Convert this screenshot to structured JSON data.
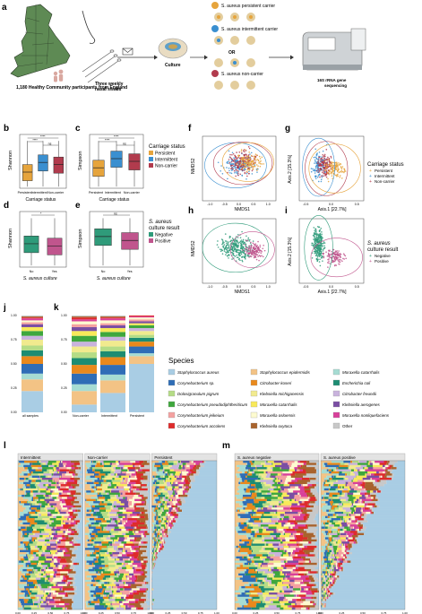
{
  "panel_letters": [
    "a",
    "b",
    "c",
    "d",
    "e",
    "f",
    "g",
    "h",
    "i",
    "j",
    "k",
    "l",
    "m"
  ],
  "workflow": {
    "participants": "1,180 Healthy Community participants from England",
    "swabs_line1": "Three weekly",
    "swabs_line2": "nasal swabs",
    "culture": "Culture",
    "persistent": "S. aureus persistent carrier",
    "intermittent": "S. aureus intermittent carrier",
    "or": "OR",
    "noncarrier": "S. aureus non-carrier",
    "sequencing_line1": "16S rRNA gene",
    "sequencing_line2": "sequencing"
  },
  "colors": {
    "persistent": "#e6a43c",
    "intermittent": "#3a8fd0",
    "noncarrier": "#b13b4d",
    "negative": "#2f9b7a",
    "positive": "#c0558d"
  },
  "legends": {
    "carriage_title": "Carriage status",
    "carriage_items": [
      "Persistent",
      "Intermittent",
      "Non-carrier"
    ],
    "culture_title_l1": "S. aureus",
    "culture_title_l2": "culture result",
    "culture_items": [
      "Negative",
      "Positive"
    ],
    "species_title": "Species",
    "species": [
      {
        "name": "Staphylococcus aureus",
        "color": "#a9cde4"
      },
      {
        "name": "Staphylococcus epidermidis",
        "color": "#f3c385"
      },
      {
        "name": "Moraxella catarrhalis",
        "color": "#a6dcd3"
      },
      {
        "name": "Corynebacterium sp.",
        "color": "#2f6db6"
      },
      {
        "name": "Citrobacter koseri",
        "color": "#e9891c"
      },
      {
        "name": "Escherichia coli",
        "color": "#1d8c72"
      },
      {
        "name": "Dolosigranulum pigrum",
        "color": "#b5dc86"
      },
      {
        "name": "Klebsiella michiganensis",
        "color": "#f1ea8e"
      },
      {
        "name": "Citrobacter freundii",
        "color": "#c9b3dd"
      },
      {
        "name": "Corynebacterium pseudodiphtheriticum",
        "color": "#3fa73d"
      },
      {
        "name": "Moraxella catarrhalis",
        "color": "#f8e95a"
      },
      {
        "name": "Klebsiella aerogenes",
        "color": "#7a4ea3"
      },
      {
        "name": "Corynebacterium jeikeium",
        "color": "#f4a1a0"
      },
      {
        "name": "Moraxella osloensis",
        "color": "#fdfbd0"
      },
      {
        "name": "Moraxella nonliquefaciens",
        "color": "#d8409a"
      },
      {
        "name": "Corynebacterium accolens",
        "color": "#de2b2b"
      },
      {
        "name": "Klebsiella oxytoca",
        "color": "#a8632d"
      },
      {
        "name": "Other",
        "color": "#c8c8c8"
      }
    ]
  },
  "axes": {
    "shannon": "Shannon",
    "simpson": "Simpson",
    "carriage_status": "Carriage status",
    "saureus_culture": "S. aureus culture",
    "nmds1": "NMDS1",
    "nmds2": "NMDS2",
    "axis1": "Axis.1 [22.7%]",
    "axis2": "Axis.2 [15.3%]",
    "cat_carriage": [
      "Persistent",
      "Intermittent",
      "Non-carrier"
    ],
    "cat_culture": [
      "No",
      "Yes"
    ],
    "sig_ns": "ns",
    "sig_star": "*",
    "sig_stars": "****",
    "nmds_ticks": [
      "-1.0",
      "-0.5",
      "0.0",
      "0.5",
      "1.0"
    ],
    "pcoa_ticks": [
      "-0.5",
      "0.0",
      "0.5"
    ],
    "rel_ticks": [
      "0.00",
      "0.25",
      "0.50",
      "0.75",
      "1.00"
    ],
    "row_ticks": [
      "0.00",
      "0.25",
      "0.50",
      "0.75",
      "1.00"
    ]
  },
  "j_label": "all samples",
  "k_labels": [
    "Non-carrier",
    "Intermittent",
    "Persistent"
  ],
  "l_labels": [
    "Intermittent",
    "Non-carrier",
    "Persistent"
  ],
  "m_labels": [
    "S. aureus negative",
    "S. aureus positive"
  ],
  "chart_data": [
    {
      "panel": "b",
      "type": "box",
      "ylabel": "Shannon",
      "xlabel": "Carriage status",
      "categories": [
        "Persistent",
        "Intermittent",
        "Non-carrier"
      ],
      "medians": [
        1.1,
        1.6,
        1.45
      ]
    },
    {
      "panel": "c",
      "type": "box",
      "ylabel": "Simpson",
      "xlabel": "Carriage status",
      "categories": [
        "Persistent",
        "Intermittent",
        "Non-carrier"
      ],
      "medians": [
        0.45,
        0.6,
        0.55
      ]
    },
    {
      "panel": "d",
      "type": "box",
      "ylabel": "Shannon",
      "xlabel": "S. aureus culture",
      "categories": [
        "No",
        "Yes"
      ],
      "medians": [
        1.5,
        1.4
      ]
    },
    {
      "panel": "e",
      "type": "box",
      "ylabel": "Simpson",
      "xlabel": "S. aureus culture",
      "categories": [
        "No",
        "Yes"
      ],
      "medians": [
        0.6,
        0.55
      ]
    },
    {
      "panel": "j",
      "type": "bar",
      "categories": [
        "all samples"
      ],
      "stacked": true
    },
    {
      "panel": "k",
      "type": "bar",
      "categories": [
        "Non-carrier",
        "Intermittent",
        "Persistent"
      ],
      "stacked": true
    }
  ]
}
